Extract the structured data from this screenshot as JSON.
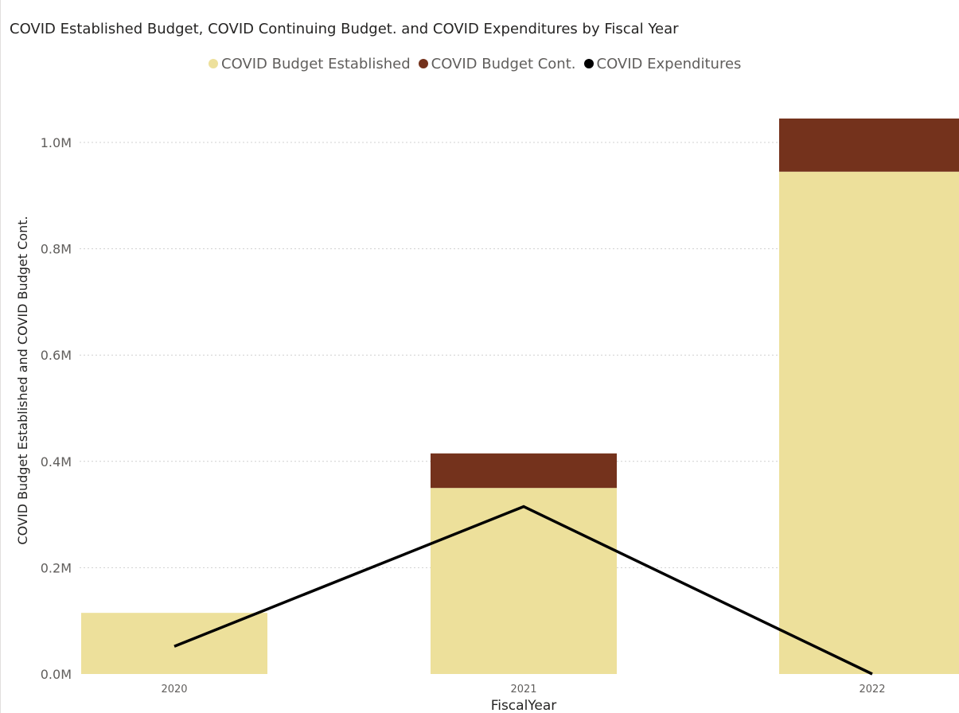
{
  "chart_data": {
    "type": "bar",
    "title": "COVID Established Budget, COVID Continuing Budget. and COVID Expenditures by Fiscal Year",
    "xlabel": "FiscalYear",
    "ylabel": "COVID Budget Established and COVID Budget Cont.",
    "categories": [
      "2020",
      "2021",
      "2022"
    ],
    "ylim": [
      0,
      1050000
    ],
    "yticks": [
      0,
      200000,
      400000,
      600000,
      800000,
      1000000
    ],
    "ytick_labels": [
      "0.0M",
      "0.2M",
      "0.4M",
      "0.6M",
      "0.8M",
      "1.0M"
    ],
    "grid": true,
    "legend_position": "top-center",
    "stacked": true,
    "series": [
      {
        "name": "COVID Budget Established",
        "type": "bar",
        "color": "#ede09b",
        "values": [
          115000,
          350000,
          945000
        ]
      },
      {
        "name": "COVID Budget Cont.",
        "type": "bar",
        "color": "#74321c",
        "values": [
          0,
          65000,
          100000
        ]
      },
      {
        "name": "COVID Expenditures",
        "type": "line",
        "color": "#000000",
        "values": [
          52000,
          315000,
          0
        ]
      }
    ]
  }
}
